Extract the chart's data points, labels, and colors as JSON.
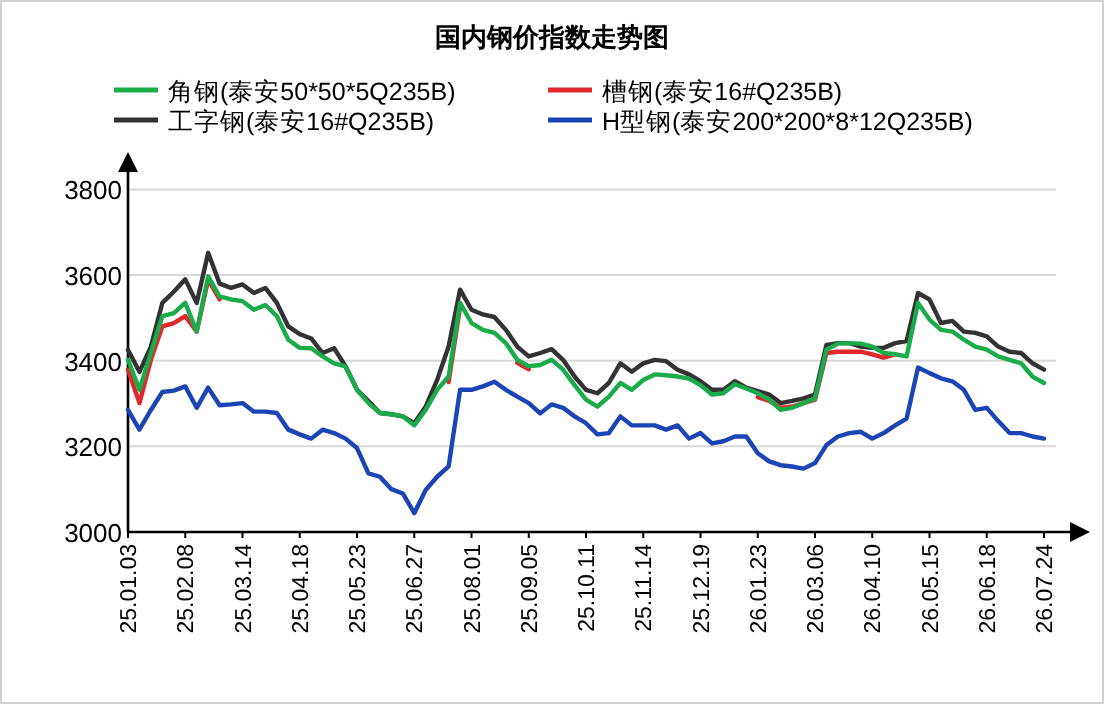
{
  "chart_data": {
    "type": "line",
    "title": "国内钢价指数走势图",
    "categories": [
      "25.01.03",
      null,
      null,
      null,
      null,
      "25.02.08",
      null,
      null,
      null,
      null,
      "25.03.14",
      null,
      null,
      null,
      null,
      "25.04.18",
      null,
      null,
      null,
      null,
      "25.05.23",
      null,
      null,
      null,
      null,
      "25.06.27",
      null,
      null,
      null,
      null,
      "25.08.01",
      null,
      null,
      null,
      null,
      "25.09.05",
      null,
      null,
      null,
      null,
      "25.10.11",
      null,
      null,
      null,
      null,
      "25.11.14",
      null,
      null,
      null,
      null,
      "25.12.19",
      null,
      null,
      null,
      null,
      "26.01.23",
      null,
      null,
      null,
      null,
      "26.03.06",
      null,
      null,
      null,
      null,
      "26.04.10",
      null,
      null,
      null,
      null,
      "26.05.15",
      null,
      null,
      null,
      null,
      "26.06.18",
      null,
      null,
      null,
      null,
      "26.07.24"
    ],
    "series": [
      {
        "name": "角钢(泰安50*50*5Q235B)",
        "color": "#1aab4b",
        "values": [
          3402,
          3332,
          3418,
          3504,
          3511,
          3535,
          3468,
          3597,
          3550,
          3543,
          3539,
          3519,
          3530,
          3504,
          3449,
          3430,
          3429,
          3410,
          3394,
          3387,
          3332,
          3301,
          3278,
          3275,
          3270,
          3249,
          3285,
          3332,
          3363,
          3535,
          3488,
          3472,
          3465,
          3441,
          3402,
          3387,
          3390,
          3402,
          3379,
          3343,
          3309,
          3293,
          3316,
          3348,
          3332,
          3355,
          3368,
          3366,
          3363,
          3358,
          3343,
          3321,
          3324,
          3345,
          3335,
          3324,
          3309,
          3285,
          3290,
          3301,
          3312,
          3426,
          3440,
          3441,
          3440,
          3433,
          3418,
          3415,
          3410,
          3535,
          3496,
          3472,
          3468,
          3449,
          3433,
          3426,
          3410,
          3402,
          3394,
          3363,
          3348
        ]
      },
      {
        "name": "槽钢(泰安16#Q235B)",
        "color": "#e0282c",
        "values": [
          3379,
          3301,
          3402,
          3480,
          3488,
          3504,
          3468,
          3589,
          3543,
          null,
          null,
          null,
          null,
          null,
          null,
          null,
          null,
          null,
          null,
          null,
          null,
          null,
          null,
          null,
          null,
          null,
          null,
          null,
          3350,
          3525,
          null,
          null,
          null,
          null,
          3395,
          3380,
          null,
          null,
          null,
          null,
          null,
          null,
          null,
          null,
          null,
          null,
          null,
          null,
          null,
          null,
          null,
          null,
          null,
          null,
          null,
          3315,
          3306,
          3290,
          3293,
          3301,
          3309,
          3418,
          3421,
          3421,
          3421,
          3415,
          3407,
          3415,
          null,
          null,
          null,
          null,
          null,
          null,
          null,
          null,
          null,
          null,
          null,
          null,
          null
        ]
      },
      {
        "name": "工字钢(泰安16#Q235B)",
        "color": "#333333",
        "values": [
          3425,
          3374,
          3433,
          3535,
          3561,
          3590,
          3535,
          3652,
          3580,
          3570,
          3578,
          3558,
          3570,
          3535,
          3480,
          3462,
          3452,
          3418,
          3429,
          3387,
          3332,
          3306,
          3278,
          3275,
          3270,
          3254,
          3293,
          3355,
          3433,
          3566,
          3519,
          3508,
          3502,
          3472,
          3433,
          3410,
          3418,
          3427,
          3402,
          3363,
          3332,
          3324,
          3348,
          3394,
          3374,
          3394,
          3402,
          3399,
          3379,
          3368,
          3352,
          3332,
          3332,
          3352,
          3337,
          3329,
          3321,
          3301,
          3306,
          3312,
          3321,
          3437,
          3441,
          3441,
          3433,
          3430,
          3430,
          3441,
          3446,
          3558,
          3543,
          3488,
          3493,
          3468,
          3465,
          3457,
          3433,
          3421,
          3418,
          3394,
          3379
        ]
      },
      {
        "name": "H型钢(泰安200*200*8*12Q235B)",
        "color": "#1b45b5",
        "values": [
          3285,
          3239,
          3285,
          3327,
          3330,
          3340,
          3290,
          3337,
          3296,
          3298,
          3301,
          3281,
          3281,
          3278,
          3239,
          3228,
          3218,
          3239,
          3231,
          3218,
          3196,
          3137,
          3129,
          3100,
          3090,
          3044,
          3098,
          3129,
          3153,
          3332,
          3332,
          3340,
          3351,
          3332,
          3316,
          3301,
          3277,
          3298,
          3290,
          3270,
          3254,
          3228,
          3231,
          3270,
          3249,
          3249,
          3249,
          3239,
          3249,
          3218,
          3231,
          3207,
          3212,
          3223,
          3223,
          3184,
          3165,
          3156,
          3153,
          3148,
          3161,
          3203,
          3223,
          3231,
          3234,
          3218,
          3231,
          3249,
          3265,
          3384,
          3371,
          3359,
          3352,
          3332,
          3285,
          3290,
          3259,
          3231,
          3231,
          3223,
          3218
        ]
      }
    ],
    "ylim": [
      3000,
      3850
    ],
    "yticks": [
      3000,
      3200,
      3400,
      3600,
      3800
    ],
    "grid": "y",
    "legend": "top"
  }
}
